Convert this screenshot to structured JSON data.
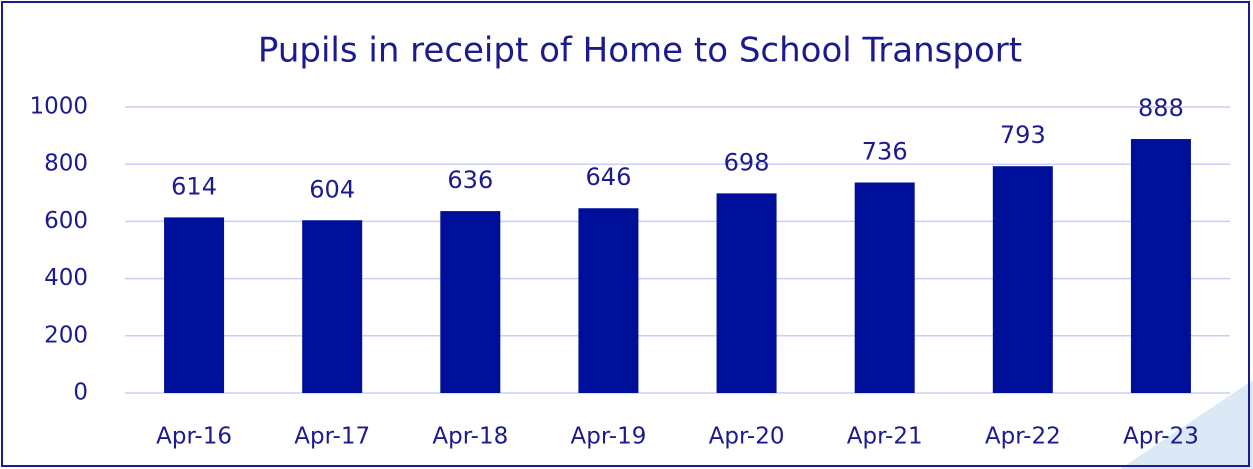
{
  "chart_data": {
    "type": "bar",
    "title": "Pupils in receipt of Home to School Transport",
    "categories": [
      "Apr-16",
      "Apr-17",
      "Apr-18",
      "Apr-19",
      "Apr-20",
      "Apr-21",
      "Apr-22",
      "Apr-23"
    ],
    "values": [
      614,
      604,
      636,
      646,
      698,
      736,
      793,
      888
    ],
    "color": "#000f99",
    "ylim": [
      0,
      1000
    ],
    "yticks": [
      0,
      200,
      400,
      600,
      800,
      1000
    ],
    "grid": true
  }
}
